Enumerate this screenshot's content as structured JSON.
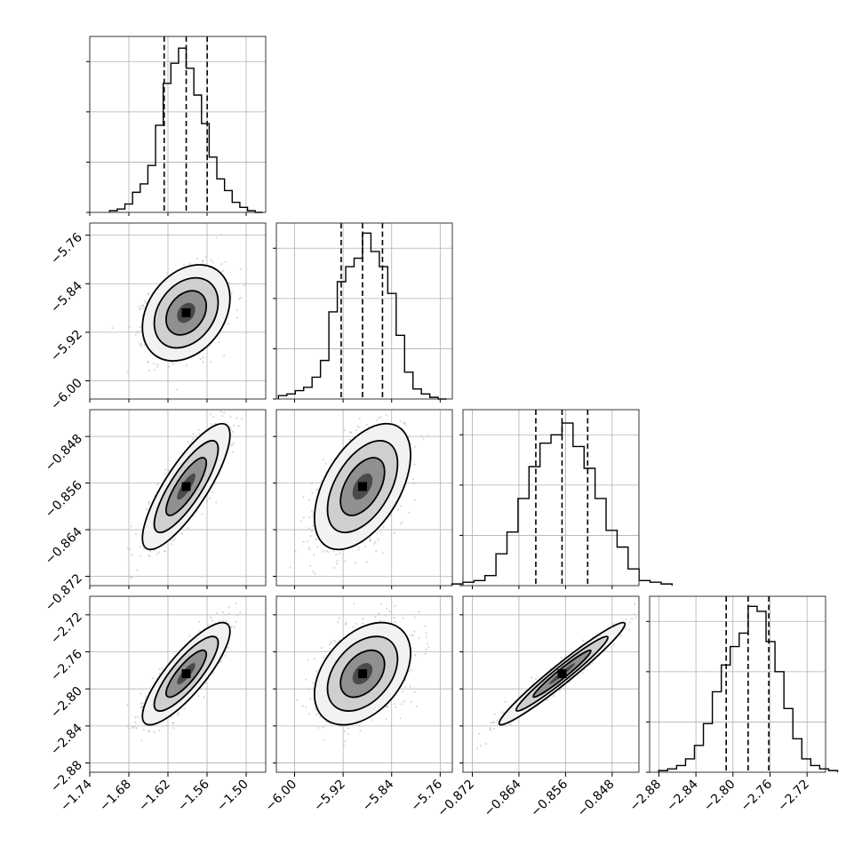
{
  "chart_data": {
    "type": "corner",
    "grid": true,
    "parameters": [
      {
        "ticks": [
          "−1.74",
          "−1.68",
          "−1.62",
          "−1.56",
          "−1.50"
        ],
        "tick_values": [
          -1.74,
          -1.68,
          -1.62,
          -1.56,
          -1.5
        ],
        "range": [
          -1.74,
          -1.47
        ],
        "quantiles": [
          -1.6258,
          -1.592,
          -1.5598
        ],
        "mean": -1.592,
        "std": 0.028,
        "hist": [
          0.01,
          0.02,
          0.05,
          0.12,
          0.17,
          0.28,
          0.52,
          0.77,
          0.89,
          0.98,
          0.86,
          0.7,
          0.53,
          0.33,
          0.2,
          0.13,
          0.06,
          0.03,
          0.01,
          0.0
        ]
      },
      {
        "ticks": [
          "−6.00",
          "−5.92",
          "−5.84",
          "−5.76"
        ],
        "tick_values": [
          -6.0,
          -5.92,
          -5.84,
          -5.76
        ],
        "range": [
          -6.03,
          -5.74
        ],
        "quantiles": [
          -5.9232,
          -5.888,
          -5.8551
        ],
        "mean": -5.888,
        "std": 0.033,
        "hist": [
          0.02,
          0.03,
          0.05,
          0.07,
          0.13,
          0.23,
          0.52,
          0.7,
          0.79,
          0.84,
          0.99,
          0.88,
          0.79,
          0.63,
          0.38,
          0.16,
          0.06,
          0.03,
          0.01,
          0.0
        ]
      },
      {
        "ticks": [
          "−0.872",
          "−0.864",
          "−0.856",
          "−0.848"
        ],
        "tick_values": [
          -0.872,
          -0.864,
          -0.856,
          -0.848
        ],
        "range": [
          -0.8736,
          -0.8434
        ],
        "quantiles": [
          -0.8611,
          -0.8566,
          -0.8522
        ],
        "mean": -0.8566,
        "std": 0.0045,
        "hist": [
          0.01,
          0.02,
          0.03,
          0.06,
          0.19,
          0.32,
          0.52,
          0.71,
          0.85,
          0.9,
          0.97,
          0.83,
          0.7,
          0.52,
          0.33,
          0.23,
          0.1,
          0.03,
          0.02,
          0.01
        ]
      },
      {
        "ticks": [
          "−2.88",
          "−2.84",
          "−2.80",
          "−2.76",
          "−2.72"
        ],
        "tick_values": [
          -2.88,
          -2.84,
          -2.8,
          -2.76,
          -2.72
        ],
        "range": [
          -2.89,
          -2.7
        ],
        "quantiles": [
          -2.8073,
          -2.7836,
          -2.7613
        ],
        "mean": -2.7836,
        "std": 0.023,
        "hist": [
          0.01,
          0.02,
          0.04,
          0.08,
          0.16,
          0.29,
          0.48,
          0.64,
          0.75,
          0.83,
          0.99,
          0.96,
          0.78,
          0.6,
          0.38,
          0.2,
          0.08,
          0.04,
          0.02,
          0.01
        ]
      }
    ],
    "correlations": [
      [
        1.0,
        0.3,
        0.82,
        0.83
      ],
      [
        0.3,
        1.0,
        0.5,
        0.4
      ],
      [
        0.82,
        0.5,
        1.0,
        0.97
      ],
      [
        0.83,
        0.4,
        0.97,
        1.0
      ]
    ],
    "hist_ylim": [
      0,
      1.05
    ],
    "colors": {
      "line": "#000000",
      "scatter": "#b8b8b8",
      "grid": "#b0b0b0"
    }
  }
}
